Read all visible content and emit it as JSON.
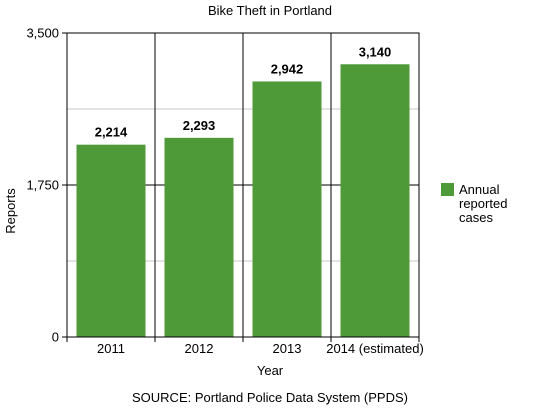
{
  "chart_data": {
    "type": "bar",
    "title": "Bike Theft in Portland",
    "categories": [
      "2011",
      "2012",
      "2013",
      "2014 (estimated)"
    ],
    "series": [
      {
        "name": "Annual reported cases",
        "values": [
          2214,
          2293,
          2942,
          3140
        ],
        "data_labels": [
          "2,214",
          "2,293",
          "2,942",
          "3,140"
        ]
      }
    ],
    "xlabel": "Year",
    "ylabel": "Reports",
    "ylim": [
      0,
      3500
    ],
    "yticks": [
      0,
      1750,
      3500
    ],
    "ytick_labels": [
      "0",
      "1,750",
      "3,500"
    ],
    "grid": true,
    "legend_position": "right",
    "legend_lines": [
      "Annual",
      "reported",
      "cases"
    ],
    "source": "SOURCE: Portland Police Data System (PPDS)",
    "bar_color": "#4e9a39",
    "grid_color": "#c8c8c8"
  }
}
